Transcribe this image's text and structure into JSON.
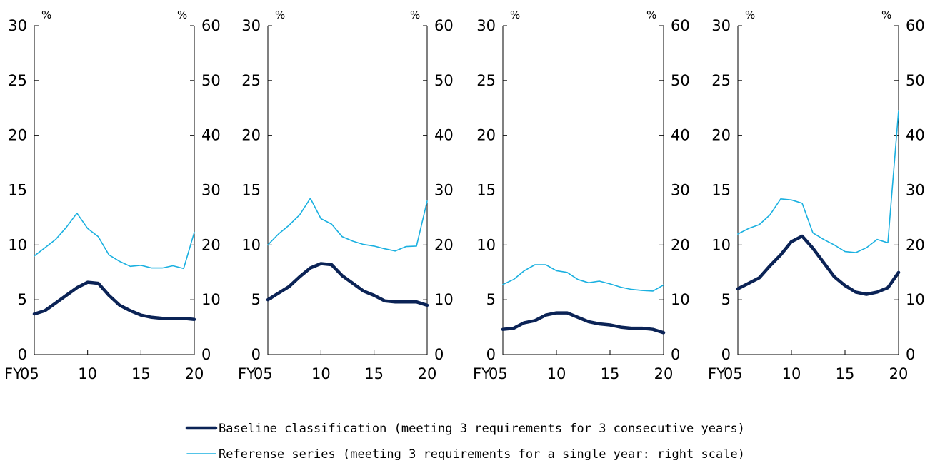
{
  "colors": {
    "baseline": "#0b2356",
    "reference": "#1ab0e0",
    "axis": "#000000"
  },
  "legend": [
    {
      "name": "Baseline classification (meeting 3 requirements for 3 consecutive years)",
      "color": "#0b2356"
    },
    {
      "name": "Referense series (meeting 3 requirements for a single year: right scale)",
      "color": "#1ab0e0"
    }
  ],
  "chart_data": [
    {
      "type": "line",
      "x": [
        2005,
        2006,
        2007,
        2008,
        2009,
        2010,
        2011,
        2012,
        2013,
        2014,
        2015,
        2016,
        2017,
        2018,
        2019,
        2020
      ],
      "x_ticks": [
        {
          "v": 2005,
          "label": "05"
        },
        {
          "v": 2010,
          "label": "10"
        },
        {
          "v": 2015,
          "label": "15"
        },
        {
          "v": 2020,
          "label": "20"
        }
      ],
      "x_prefix": "FY",
      "y_left": {
        "min": 0,
        "max": 30,
        "ticks": [
          0,
          5,
          10,
          15,
          20,
          25,
          30
        ],
        "unit": "%"
      },
      "y_right": {
        "min": 0,
        "max": 60,
        "ticks": [
          0,
          10,
          20,
          30,
          40,
          50,
          60
        ],
        "unit": "%"
      },
      "series": [
        {
          "name": "Baseline classification (meeting 3 requirements for 3 consecutive years)",
          "axis": "left",
          "values": [
            3.7,
            4.0,
            4.7,
            5.4,
            6.1,
            6.6,
            6.5,
            5.4,
            4.5,
            4.0,
            3.6,
            3.4,
            3.3,
            3.3,
            3.3,
            3.2
          ]
        },
        {
          "name": "Referense series (meeting 3 requirements for a single year: right scale)",
          "axis": "right",
          "values": [
            18,
            19.5,
            21,
            23.2,
            25.8,
            23,
            21.5,
            18.2,
            17,
            16.1,
            16.3,
            15.8,
            15.8,
            16.2,
            15.7,
            22.3
          ]
        }
      ]
    },
    {
      "type": "line",
      "x": [
        2005,
        2006,
        2007,
        2008,
        2009,
        2010,
        2011,
        2012,
        2013,
        2014,
        2015,
        2016,
        2017,
        2018,
        2019,
        2020
      ],
      "x_ticks": [
        {
          "v": 2005,
          "label": "05"
        },
        {
          "v": 2010,
          "label": "10"
        },
        {
          "v": 2015,
          "label": "15"
        },
        {
          "v": 2020,
          "label": "20"
        }
      ],
      "x_prefix": "FY",
      "y_left": {
        "min": 0,
        "max": 30,
        "ticks": [
          0,
          5,
          10,
          15,
          20,
          25,
          30
        ],
        "unit": "%"
      },
      "y_right": {
        "min": 0,
        "max": 60,
        "ticks": [
          0,
          10,
          20,
          30,
          40,
          50,
          60
        ],
        "unit": "%"
      },
      "series": [
        {
          "name": "Baseline classification (meeting 3 requirements for 3 consecutive years)",
          "axis": "left",
          "values": [
            5.0,
            5.6,
            6.2,
            7.1,
            7.9,
            8.3,
            8.2,
            7.2,
            6.5,
            5.8,
            5.4,
            4.9,
            4.8,
            4.8,
            4.8,
            4.5
          ]
        },
        {
          "name": "Referense series (meeting 3 requirements for a single year: right scale)",
          "axis": "right",
          "values": [
            20,
            22,
            23.6,
            25.5,
            28.5,
            24.8,
            23.8,
            21.5,
            20.7,
            20.1,
            19.8,
            19.3,
            18.9,
            19.7,
            19.8,
            28
          ]
        }
      ]
    },
    {
      "type": "line",
      "x": [
        2005,
        2006,
        2007,
        2008,
        2009,
        2010,
        2011,
        2012,
        2013,
        2014,
        2015,
        2016,
        2017,
        2018,
        2019,
        2020
      ],
      "x_ticks": [
        {
          "v": 2005,
          "label": "05"
        },
        {
          "v": 2010,
          "label": "10"
        },
        {
          "v": 2015,
          "label": "15"
        },
        {
          "v": 2020,
          "label": "20"
        }
      ],
      "x_prefix": "FY",
      "y_left": {
        "min": 0,
        "max": 30,
        "ticks": [
          0,
          5,
          10,
          15,
          20,
          25,
          30
        ],
        "unit": "%"
      },
      "y_right": {
        "min": 0,
        "max": 60,
        "ticks": [
          0,
          10,
          20,
          30,
          40,
          50,
          60
        ],
        "unit": "%"
      },
      "series": [
        {
          "name": "Baseline classification (meeting 3 requirements for 3 consecutive years)",
          "axis": "left",
          "values": [
            2.3,
            2.4,
            2.9,
            3.1,
            3.6,
            3.8,
            3.8,
            3.4,
            3.0,
            2.8,
            2.7,
            2.5,
            2.4,
            2.4,
            2.3,
            2.0
          ]
        },
        {
          "name": "Referense series (meeting 3 requirements for a single year: right scale)",
          "axis": "right",
          "values": [
            12.8,
            13.7,
            15.3,
            16.4,
            16.4,
            15.3,
            15.0,
            13.7,
            13.1,
            13.4,
            12.9,
            12.3,
            11.9,
            11.7,
            11.6,
            12.7
          ]
        }
      ]
    },
    {
      "type": "line",
      "x": [
        2005,
        2006,
        2007,
        2008,
        2009,
        2010,
        2011,
        2012,
        2013,
        2014,
        2015,
        2016,
        2017,
        2018,
        2019,
        2020
      ],
      "x_ticks": [
        {
          "v": 2005,
          "label": "05"
        },
        {
          "v": 2010,
          "label": "10"
        },
        {
          "v": 2015,
          "label": "15"
        },
        {
          "v": 2020,
          "label": "20"
        }
      ],
      "x_prefix": "FY",
      "y_left": {
        "min": 0,
        "max": 30,
        "ticks": [
          0,
          5,
          10,
          15,
          20,
          25,
          30
        ],
        "unit": "%"
      },
      "y_right": {
        "min": 0,
        "max": 60,
        "ticks": [
          0,
          10,
          20,
          30,
          40,
          50,
          60
        ],
        "unit": "%"
      },
      "series": [
        {
          "name": "Baseline classification (meeting 3 requirements for 3 consecutive years)",
          "axis": "left",
          "values": [
            6.0,
            6.5,
            7.0,
            8.1,
            9.1,
            10.3,
            10.8,
            9.7,
            8.4,
            7.1,
            6.3,
            5.7,
            5.5,
            5.7,
            6.1,
            7.5
          ]
        },
        {
          "name": "Referense series (meeting 3 requirements for a single year: right scale)",
          "axis": "right",
          "values": [
            22,
            23,
            23.7,
            25.5,
            28.4,
            28.2,
            27.6,
            22.2,
            21,
            20,
            18.8,
            18.6,
            19.5,
            21,
            20.4,
            44.5
          ]
        }
      ]
    }
  ]
}
